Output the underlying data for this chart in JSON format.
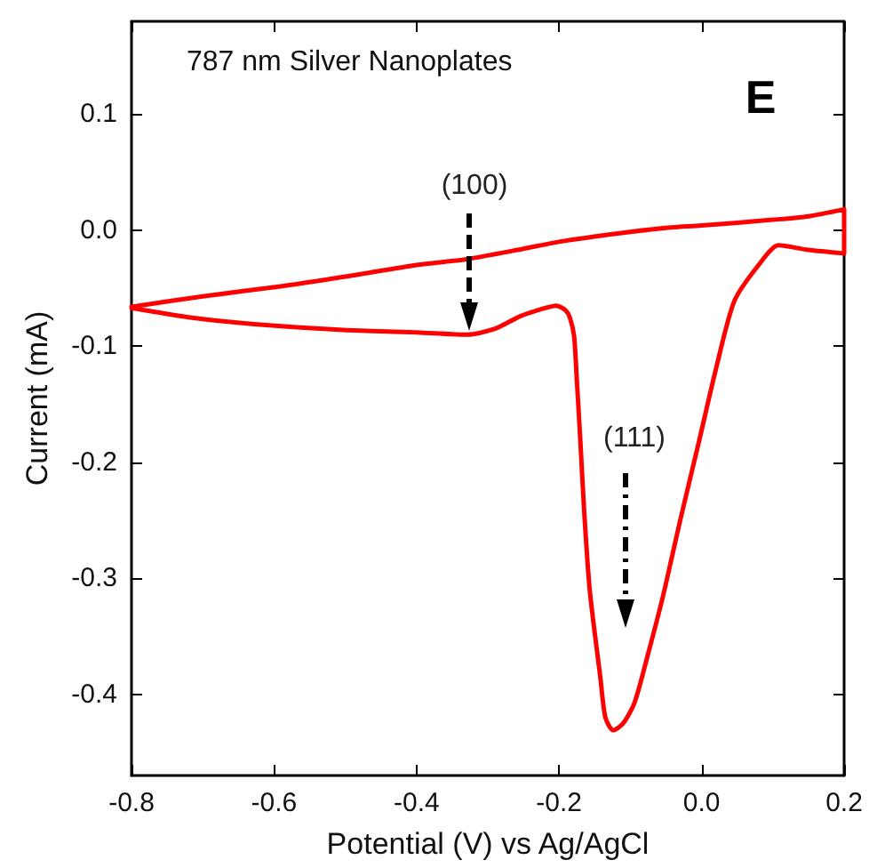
{
  "chart_data": {
    "type": "line",
    "title": "787 nm Silver Nanoplates",
    "xlabel": "Potential (V) vs Ag/AgCl",
    "ylabel": "Current (mA)",
    "annotations": [
      "E",
      "(100)",
      "(111)"
    ],
    "series": [
      {
        "color": "#ff0000",
        "x": [
          -0.8,
          -0.7,
          -0.586,
          -0.5,
          -0.4,
          -0.33,
          -0.25,
          -0.2,
          -0.12,
          -0.05,
          0.0,
          0.1,
          0.15,
          0.2,
          0.2,
          0.15,
          0.108,
          0.08,
          0.046,
          0.02,
          -0.004,
          -0.03,
          -0.054,
          -0.075,
          -0.094,
          -0.11,
          -0.124,
          -0.135,
          -0.142,
          -0.157,
          -0.165,
          -0.17,
          -0.175,
          -0.179,
          -0.185,
          -0.191,
          -0.204,
          -0.225,
          -0.254,
          -0.29,
          -0.329,
          -0.4,
          -0.503,
          -0.628,
          -0.72,
          -0.8
        ],
        "values": [
          -0.066,
          -0.057,
          -0.048,
          -0.04,
          -0.03,
          -0.025,
          -0.016,
          -0.01,
          -0.003,
          0.002,
          0.004,
          0.009,
          0.012,
          0.018,
          -0.02,
          -0.017,
          -0.013,
          -0.03,
          -0.061,
          -0.12,
          -0.183,
          -0.25,
          -0.315,
          -0.365,
          -0.407,
          -0.425,
          -0.431,
          -0.42,
          -0.386,
          -0.31,
          -0.24,
          -0.183,
          -0.13,
          -0.091,
          -0.075,
          -0.069,
          -0.065,
          -0.068,
          -0.074,
          -0.085,
          -0.09,
          -0.088,
          -0.086,
          -0.081,
          -0.075,
          -0.067
        ]
      }
    ],
    "xlim": [
      -0.8,
      0.2
    ],
    "xticks": [
      -0.8,
      -0.6,
      -0.4,
      -0.2,
      {
        "value": 0,
        "label": "0.0"
      },
      0.2
    ],
    "ylim": [
      -0.47,
      0.18
    ],
    "yticks": [
      -0.4,
      -0.3,
      -0.2,
      -0.1,
      {
        "value": 0,
        "label": "0.0"
      },
      0.1
    ],
    "grid": false,
    "marker": "none",
    "line_style": "solid"
  }
}
